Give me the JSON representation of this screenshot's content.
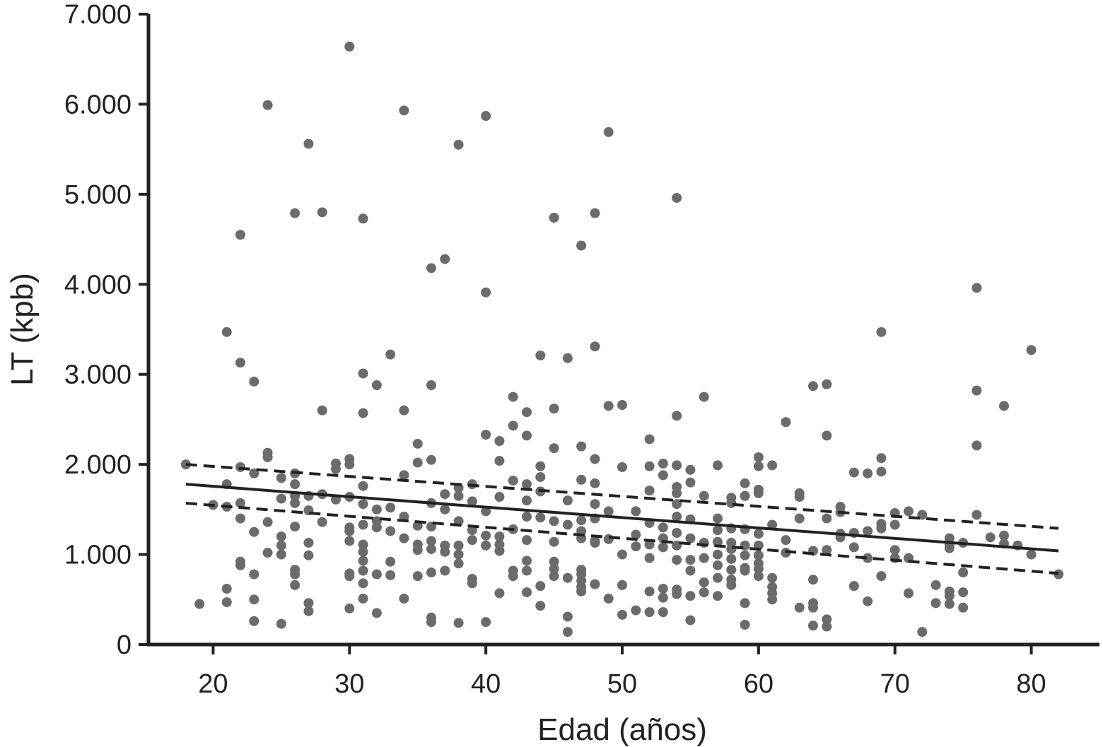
{
  "chart_data": {
    "type": "scatter",
    "title": "",
    "xlabel": "Edad (años)",
    "ylabel": "LT (kpb)",
    "xlim": [
      15,
      85
    ],
    "ylim": [
      0,
      7000
    ],
    "x_ticks": [
      20,
      30,
      40,
      50,
      60,
      70,
      80
    ],
    "x_tick_labels": [
      "20",
      "30",
      "40",
      "50",
      "60",
      "70",
      "80"
    ],
    "y_ticks": [
      0,
      1000,
      2000,
      3000,
      4000,
      5000,
      6000,
      7000
    ],
    "y_tick_labels": [
      "0",
      "1.000",
      "2.000",
      "3.000",
      "4.000",
      "5.000",
      "6.000",
      "7.000"
    ],
    "grid": false,
    "colors": {
      "points": "#6b6b6b",
      "lines": "#222222",
      "axes": "#222222"
    },
    "points": [
      [
        18,
        2000
      ],
      [
        19,
        450
      ],
      [
        20,
        1550
      ],
      [
        21,
        3470
      ],
      [
        21,
        1780
      ],
      [
        21,
        1530
      ],
      [
        21,
        620
      ],
      [
        21,
        470
      ],
      [
        22,
        4550
      ],
      [
        22,
        3130
      ],
      [
        22,
        1970
      ],
      [
        22,
        1570
      ],
      [
        22,
        1400
      ],
      [
        22,
        920
      ],
      [
        22,
        880
      ],
      [
        23,
        2920
      ],
      [
        23,
        1900
      ],
      [
        23,
        1250
      ],
      [
        23,
        780
      ],
      [
        23,
        500
      ],
      [
        23,
        260
      ],
      [
        24,
        5990
      ],
      [
        24,
        2130
      ],
      [
        24,
        2080
      ],
      [
        24,
        1360
      ],
      [
        24,
        1020
      ],
      [
        25,
        1850
      ],
      [
        25,
        1620
      ],
      [
        25,
        1200
      ],
      [
        25,
        1100
      ],
      [
        25,
        1000
      ],
      [
        25,
        230
      ],
      [
        26,
        4790
      ],
      [
        26,
        1900
      ],
      [
        26,
        1780
      ],
      [
        26,
        1650
      ],
      [
        26,
        1570
      ],
      [
        26,
        1310
      ],
      [
        26,
        830
      ],
      [
        26,
        780
      ],
      [
        26,
        660
      ],
      [
        27,
        5560
      ],
      [
        27,
        1650
      ],
      [
        27,
        1490
      ],
      [
        27,
        1130
      ],
      [
        27,
        990
      ],
      [
        27,
        460
      ],
      [
        27,
        370
      ],
      [
        28,
        4800
      ],
      [
        28,
        2600
      ],
      [
        28,
        1670
      ],
      [
        28,
        1360
      ],
      [
        29,
        2010
      ],
      [
        29,
        1950
      ],
      [
        29,
        1610
      ],
      [
        30,
        6640
      ],
      [
        30,
        2060
      ],
      [
        30,
        2000
      ],
      [
        30,
        1640
      ],
      [
        30,
        1300
      ],
      [
        30,
        1260
      ],
      [
        30,
        1150
      ],
      [
        30,
        790
      ],
      [
        30,
        760
      ],
      [
        30,
        400
      ],
      [
        31,
        4730
      ],
      [
        31,
        3010
      ],
      [
        31,
        2570
      ],
      [
        31,
        1760
      ],
      [
        31,
        1560
      ],
      [
        31,
        1330
      ],
      [
        31,
        1110
      ],
      [
        31,
        1030
      ],
      [
        31,
        930
      ],
      [
        31,
        820
      ],
      [
        31,
        680
      ],
      [
        31,
        510
      ],
      [
        32,
        2880
      ],
      [
        32,
        1500
      ],
      [
        32,
        1370
      ],
      [
        32,
        1300
      ],
      [
        32,
        780
      ],
      [
        32,
        350
      ],
      [
        33,
        3220
      ],
      [
        33,
        1520
      ],
      [
        33,
        1260
      ],
      [
        33,
        920
      ],
      [
        33,
        770
      ],
      [
        34,
        5930
      ],
      [
        34,
        2600
      ],
      [
        34,
        1880
      ],
      [
        34,
        1420
      ],
      [
        34,
        1180
      ],
      [
        34,
        510
      ],
      [
        35,
        2230
      ],
      [
        35,
        2020
      ],
      [
        35,
        1320
      ],
      [
        35,
        1110
      ],
      [
        35,
        1050
      ],
      [
        35,
        760
      ],
      [
        36,
        4180
      ],
      [
        36,
        2880
      ],
      [
        36,
        2050
      ],
      [
        36,
        1570
      ],
      [
        36,
        1310
      ],
      [
        36,
        1150
      ],
      [
        36,
        1060
      ],
      [
        36,
        800
      ],
      [
        36,
        300
      ],
      [
        36,
        250
      ],
      [
        37,
        4280
      ],
      [
        37,
        1670
      ],
      [
        37,
        1500
      ],
      [
        37,
        1100
      ],
      [
        37,
        1030
      ],
      [
        37,
        820
      ],
      [
        38,
        5550
      ],
      [
        38,
        1740
      ],
      [
        38,
        1650
      ],
      [
        38,
        1370
      ],
      [
        38,
        1100
      ],
      [
        38,
        1000
      ],
      [
        38,
        900
      ],
      [
        38,
        240
      ],
      [
        39,
        1780
      ],
      [
        39,
        1590
      ],
      [
        39,
        1270
      ],
      [
        39,
        1160
      ],
      [
        39,
        730
      ],
      [
        39,
        680
      ],
      [
        40,
        5870
      ],
      [
        40,
        3910
      ],
      [
        40,
        2330
      ],
      [
        40,
        1480
      ],
      [
        40,
        1210
      ],
      [
        40,
        1100
      ],
      [
        40,
        250
      ],
      [
        41,
        2260
      ],
      [
        41,
        2040
      ],
      [
        41,
        1640
      ],
      [
        41,
        1200
      ],
      [
        41,
        1110
      ],
      [
        41,
        1040
      ],
      [
        41,
        570
      ],
      [
        42,
        2750
      ],
      [
        42,
        2430
      ],
      [
        42,
        1820
      ],
      [
        42,
        1280
      ],
      [
        42,
        820
      ],
      [
        42,
        760
      ],
      [
        43,
        2580
      ],
      [
        43,
        2320
      ],
      [
        43,
        1780
      ],
      [
        43,
        1600
      ],
      [
        43,
        1420
      ],
      [
        43,
        1160
      ],
      [
        43,
        930
      ],
      [
        43,
        820
      ],
      [
        43,
        580
      ],
      [
        44,
        3210
      ],
      [
        44,
        1980
      ],
      [
        44,
        1860
      ],
      [
        44,
        1700
      ],
      [
        44,
        1410
      ],
      [
        44,
        650
      ],
      [
        44,
        430
      ],
      [
        45,
        4740
      ],
      [
        45,
        2620
      ],
      [
        45,
        2180
      ],
      [
        45,
        1370
      ],
      [
        45,
        1140
      ],
      [
        45,
        920
      ],
      [
        45,
        840
      ],
      [
        45,
        760
      ],
      [
        46,
        3180
      ],
      [
        46,
        1600
      ],
      [
        46,
        1330
      ],
      [
        46,
        740
      ],
      [
        46,
        310
      ],
      [
        46,
        140
      ],
      [
        47,
        4430
      ],
      [
        47,
        2200
      ],
      [
        47,
        1830
      ],
      [
        47,
        1380
      ],
      [
        47,
        1260
      ],
      [
        47,
        1180
      ],
      [
        47,
        830
      ],
      [
        47,
        780
      ],
      [
        47,
        710
      ],
      [
        47,
        640
      ],
      [
        47,
        590
      ],
      [
        48,
        4790
      ],
      [
        48,
        3310
      ],
      [
        48,
        2060
      ],
      [
        48,
        1790
      ],
      [
        48,
        1560
      ],
      [
        48,
        1400
      ],
      [
        48,
        1150
      ],
      [
        48,
        1130
      ],
      [
        48,
        670
      ],
      [
        49,
        5690
      ],
      [
        49,
        2650
      ],
      [
        49,
        1480
      ],
      [
        49,
        1170
      ],
      [
        49,
        510
      ],
      [
        50,
        2660
      ],
      [
        50,
        1970
      ],
      [
        50,
        1000
      ],
      [
        50,
        660
      ],
      [
        50,
        330
      ],
      [
        51,
        1480
      ],
      [
        51,
        1220
      ],
      [
        51,
        1090
      ],
      [
        51,
        380
      ],
      [
        52,
        2280
      ],
      [
        52,
        1980
      ],
      [
        52,
        1710
      ],
      [
        52,
        1350
      ],
      [
        52,
        1110
      ],
      [
        52,
        960
      ],
      [
        52,
        590
      ],
      [
        52,
        360
      ],
      [
        53,
        2010
      ],
      [
        53,
        1880
      ],
      [
        53,
        1300
      ],
      [
        53,
        1180
      ],
      [
        53,
        1080
      ],
      [
        53,
        620
      ],
      [
        53,
        520
      ],
      [
        53,
        360
      ],
      [
        54,
        4960
      ],
      [
        54,
        2540
      ],
      [
        54,
        1990
      ],
      [
        54,
        1750
      ],
      [
        54,
        1680
      ],
      [
        54,
        1560
      ],
      [
        54,
        1420
      ],
      [
        54,
        1240
      ],
      [
        54,
        1100
      ],
      [
        54,
        940
      ],
      [
        54,
        610
      ],
      [
        54,
        560
      ],
      [
        55,
        1940
      ],
      [
        55,
        1800
      ],
      [
        55,
        1390
      ],
      [
        55,
        1180
      ],
      [
        55,
        940
      ],
      [
        55,
        820
      ],
      [
        55,
        540
      ],
      [
        55,
        270
      ],
      [
        56,
        2750
      ],
      [
        56,
        1650
      ],
      [
        56,
        1130
      ],
      [
        56,
        960
      ],
      [
        56,
        690
      ],
      [
        56,
        580
      ],
      [
        57,
        1990
      ],
      [
        57,
        1400
      ],
      [
        57,
        1270
      ],
      [
        57,
        1140
      ],
      [
        57,
        1000
      ],
      [
        57,
        880
      ],
      [
        57,
        740
      ],
      [
        57,
        540
      ],
      [
        58,
        1630
      ],
      [
        58,
        1570
      ],
      [
        58,
        1290
      ],
      [
        58,
        1130
      ],
      [
        58,
        1060
      ],
      [
        58,
        950
      ],
      [
        58,
        830
      ],
      [
        58,
        720
      ],
      [
        58,
        660
      ],
      [
        59,
        1790
      ],
      [
        59,
        1650
      ],
      [
        59,
        1280
      ],
      [
        59,
        1100
      ],
      [
        59,
        990
      ],
      [
        59,
        850
      ],
      [
        59,
        820
      ],
      [
        59,
        460
      ],
      [
        59,
        220
      ],
      [
        60,
        2080
      ],
      [
        60,
        1980
      ],
      [
        60,
        1720
      ],
      [
        60,
        1680
      ],
      [
        60,
        1230
      ],
      [
        60,
        1100
      ],
      [
        60,
        990
      ],
      [
        60,
        900
      ],
      [
        60,
        840
      ],
      [
        60,
        760
      ],
      [
        61,
        1990
      ],
      [
        61,
        1330
      ],
      [
        61,
        740
      ],
      [
        61,
        640
      ],
      [
        61,
        570
      ],
      [
        61,
        500
      ],
      [
        62,
        2470
      ],
      [
        62,
        1160
      ],
      [
        62,
        1020
      ],
      [
        63,
        1680
      ],
      [
        63,
        1640
      ],
      [
        63,
        1400
      ],
      [
        63,
        410
      ],
      [
        64,
        2870
      ],
      [
        64,
        1040
      ],
      [
        64,
        720
      ],
      [
        64,
        460
      ],
      [
        64,
        410
      ],
      [
        64,
        210
      ],
      [
        65,
        2890
      ],
      [
        65,
        2320
      ],
      [
        65,
        1400
      ],
      [
        65,
        1050
      ],
      [
        65,
        280
      ],
      [
        65,
        200
      ],
      [
        66,
        1530
      ],
      [
        66,
        1470
      ],
      [
        66,
        1230
      ],
      [
        66,
        1190
      ],
      [
        67,
        1910
      ],
      [
        67,
        1240
      ],
      [
        67,
        1080
      ],
      [
        67,
        650
      ],
      [
        68,
        1900
      ],
      [
        68,
        1260
      ],
      [
        68,
        960
      ],
      [
        68,
        480
      ],
      [
        69,
        3470
      ],
      [
        69,
        2070
      ],
      [
        69,
        1920
      ],
      [
        69,
        1340
      ],
      [
        69,
        1290
      ],
      [
        69,
        760
      ],
      [
        70,
        1460
      ],
      [
        70,
        1330
      ],
      [
        70,
        1050
      ],
      [
        70,
        960
      ],
      [
        71,
        1480
      ],
      [
        71,
        960
      ],
      [
        71,
        570
      ],
      [
        72,
        1440
      ],
      [
        72,
        140
      ],
      [
        73,
        660
      ],
      [
        73,
        460
      ],
      [
        74,
        1180
      ],
      [
        74,
        1110
      ],
      [
        74,
        1070
      ],
      [
        74,
        590
      ],
      [
        74,
        540
      ],
      [
        74,
        450
      ],
      [
        75,
        1130
      ],
      [
        75,
        800
      ],
      [
        75,
        580
      ],
      [
        75,
        410
      ],
      [
        76,
        3960
      ],
      [
        76,
        2820
      ],
      [
        76,
        2210
      ],
      [
        76,
        1440
      ],
      [
        77,
        1190
      ],
      [
        78,
        2650
      ],
      [
        78,
        1210
      ],
      [
        78,
        1120
      ],
      [
        79,
        1100
      ],
      [
        80,
        3270
      ],
      [
        80,
        1000
      ],
      [
        82,
        780
      ]
    ],
    "fit_line": {
      "name": "",
      "x": [
        18,
        82
      ],
      "y": [
        1780,
        1040
      ]
    },
    "ci_upper": {
      "name": "",
      "x": [
        18,
        82
      ],
      "y": [
        2000,
        1290
      ]
    },
    "ci_lower": {
      "name": "",
      "x": [
        18,
        82
      ],
      "y": [
        1570,
        790
      ]
    }
  }
}
